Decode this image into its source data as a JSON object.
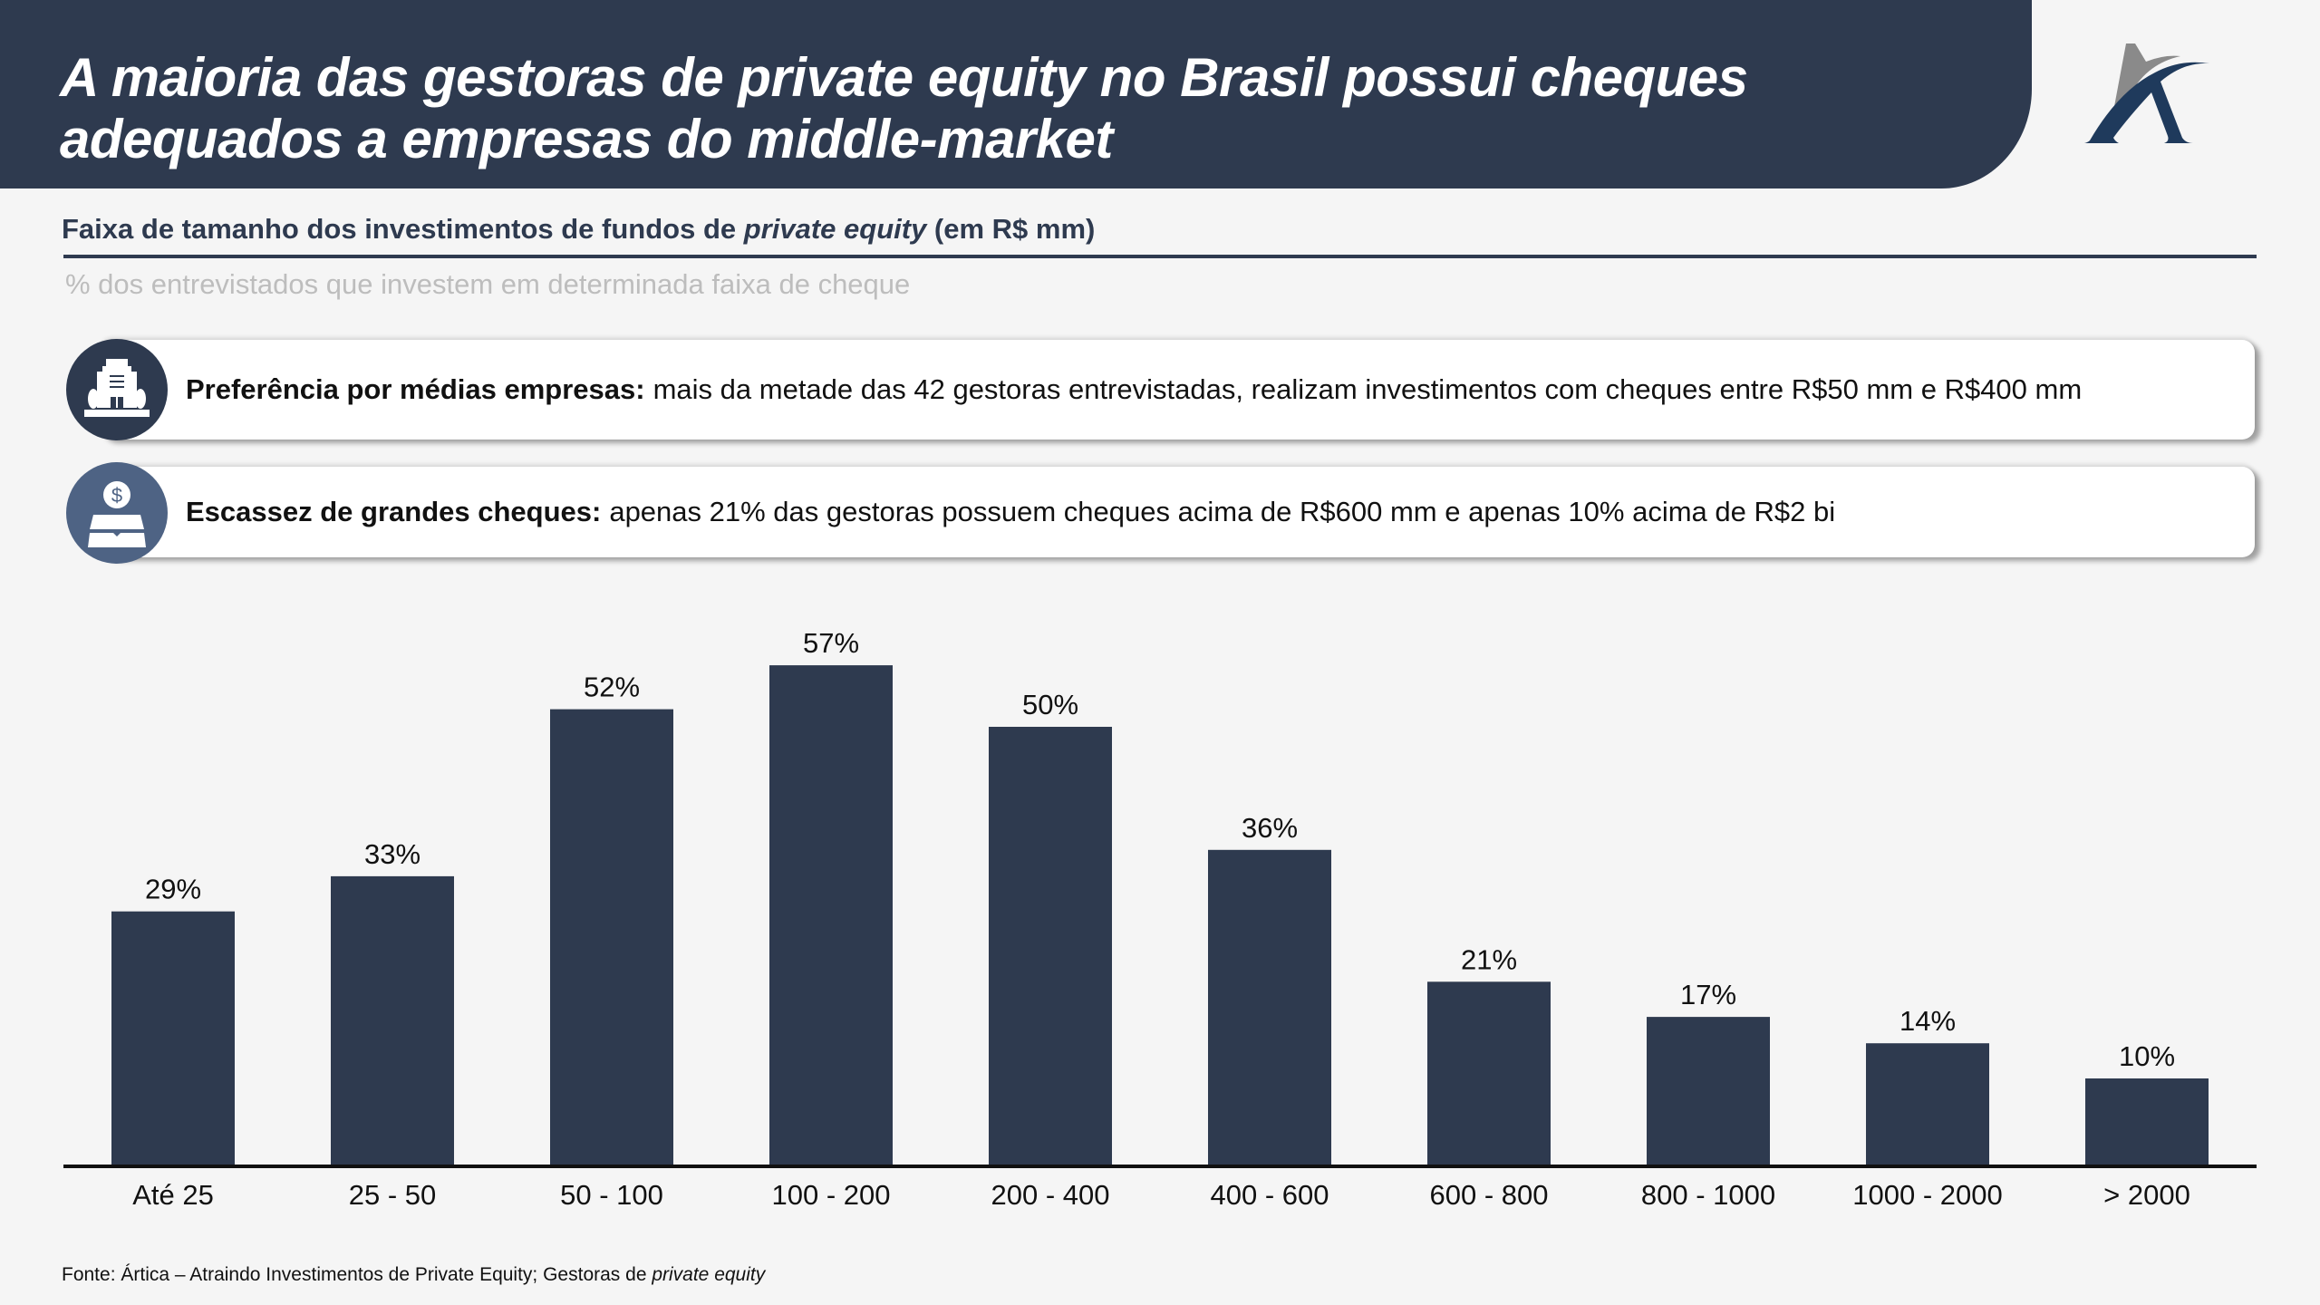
{
  "header": {
    "title_line1": "A maioria das gestoras de private equity no Brasil possui cheques",
    "title_line2": "adequados a empresas do middle-market",
    "logo": "artica-logo",
    "background_color": "#2e3a4f"
  },
  "section": {
    "title_main": "Faixa de tamanho dos investimentos de fundos de ",
    "title_italic": "private equity",
    "title_end": " (em R$ mm)",
    "subtitle": "% dos entrevistados que investem em determinada faixa de cheque"
  },
  "callouts": [
    {
      "icon": "building-icon",
      "icon_color": "#2e3a4f",
      "bold": "Preferência por médias empresas:",
      "text": "mais da metade das 42 gestoras entrevistadas, realizam investimentos com cheques entre R$50 mm e R$400 mm"
    },
    {
      "icon": "money-coin-icon",
      "icon_color": "#4e6384",
      "bold": "Escassez de grandes cheques:",
      "text": "apenas 21% das gestoras possuem cheques acima de R$600 mm e apenas 10% acima de R$2 bi"
    }
  ],
  "chart_data": {
    "type": "bar",
    "title": "Faixa de tamanho dos investimentos de fundos de private equity (em R$ mm)",
    "subtitle": "% dos entrevistados que investem em determinada faixa de cheque",
    "xlabel": "",
    "ylabel": "",
    "categories": [
      "Até 25",
      "25 - 50",
      "50 - 100",
      "100 - 200",
      "200 - 400",
      "400 - 600",
      "600 - 800",
      "800 - 1000",
      "1000 - 2000",
      "> 2000"
    ],
    "values": [
      29,
      33,
      52,
      57,
      50,
      36,
      21,
      17,
      14,
      10
    ],
    "value_labels": [
      "29%",
      "33%",
      "52%",
      "57%",
      "50%",
      "36%",
      "21%",
      "17%",
      "14%",
      "10%"
    ],
    "unit": "%",
    "ylim": [
      0,
      60
    ],
    "grid": false,
    "legend": "none",
    "bar_color": "#2e3a4f"
  },
  "source": {
    "prefix": "Fonte: Ártica – Atraindo Investimentos de Private Equity; Gestoras de ",
    "italic": "private equity"
  }
}
